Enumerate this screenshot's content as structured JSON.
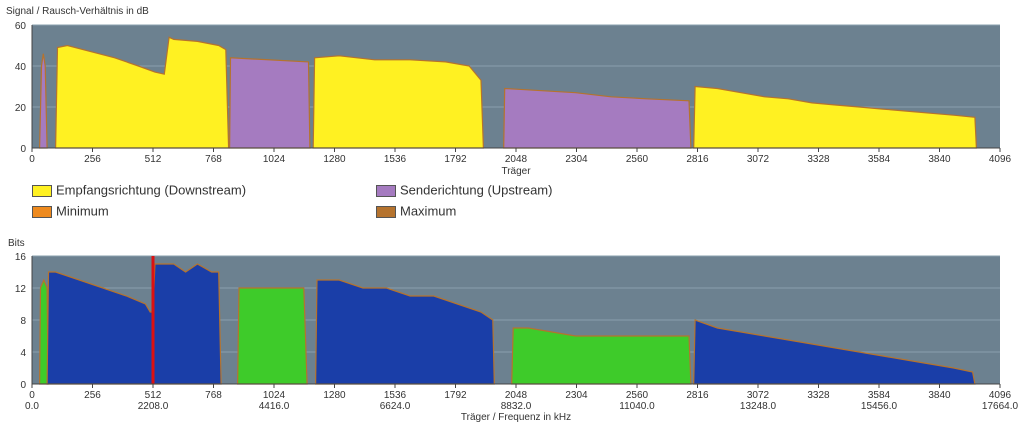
{
  "chart_data": [
    {
      "type": "area",
      "title": "Signal / Rausch-Verhältnis in dB",
      "xlabel": "Träger",
      "ylabel": "",
      "xlim": [
        0,
        4096
      ],
      "ylim": [
        0,
        60
      ],
      "xticks": [
        0,
        256,
        512,
        768,
        1024,
        1280,
        1536,
        1792,
        2048,
        2304,
        2560,
        2816,
        3072,
        3328,
        3584,
        3840,
        4096
      ],
      "yticks": [
        0,
        20,
        40,
        60
      ],
      "colors": {
        "downstream": "#fff122",
        "upstream": "#a57bc0",
        "minimum": "#ee8a1e",
        "maximum": "#b5732e",
        "plot_bg": "#6c8190"
      },
      "legend": [
        {
          "label": "Empfangsrichtung (Downstream)",
          "color": "#fff122"
        },
        {
          "label": "Senderichtung (Upstream)",
          "color": "#a57bc0"
        },
        {
          "label": "Minimum",
          "color": "#ee8a1e"
        },
        {
          "label": "Maximum",
          "color": "#b5732e"
        }
      ],
      "series": [
        {
          "name": "Senderichtung (Upstream)",
          "segments": [
            {
              "x": [
                32,
                40,
                48,
                56,
                64
              ],
              "y": [
                0,
                40,
                46,
                40,
                0
              ]
            },
            {
              "x": [
                836,
                840,
                1170,
                1176
              ],
              "y": [
                0,
                44,
                42,
                0
              ]
            },
            {
              "x": [
                1996,
                2000,
                2300,
                2450,
                2600,
                2780,
                2788
              ],
              "y": [
                0,
                29,
                27,
                25,
                24,
                23,
                0
              ]
            }
          ]
        },
        {
          "name": "Empfangsrichtung (Downstream)",
          "segments": [
            {
              "x": [
                100,
                108,
                150,
                250,
                350,
                450,
                520,
                560,
                580,
                600,
                700,
                790,
                820,
                832
              ],
              "y": [
                0,
                49,
                50,
                47,
                44,
                40,
                37,
                36,
                54,
                53,
                52,
                50,
                48,
                0
              ]
            },
            {
              "x": [
                1190,
                1196,
                1300,
                1450,
                1600,
                1750,
                1850,
                1900,
                1910
              ],
              "y": [
                0,
                44,
                45,
                43,
                43,
                42,
                40,
                33,
                0
              ]
            },
            {
              "x": [
                2800,
                2806,
                2900,
                3000,
                3100,
                3200,
                3300,
                3400,
                3500,
                3600,
                3700,
                3800,
                3900,
                3990,
                3996
              ],
              "y": [
                0,
                30,
                29,
                27,
                25,
                24,
                22,
                21,
                20,
                19,
                18,
                17,
                16,
                15,
                0
              ]
            }
          ]
        }
      ]
    },
    {
      "type": "area",
      "title": "Bits",
      "xlabel": "Träger / Frequenz in kHz",
      "ylabel": "",
      "xlim": [
        0,
        4096
      ],
      "ylim": [
        0,
        16
      ],
      "xticks": [
        0,
        256,
        512,
        768,
        1024,
        1280,
        1536,
        1792,
        2048,
        2304,
        2560,
        2816,
        3072,
        3328,
        3584,
        3840,
        4096
      ],
      "xticks_khz": [
        "0.0",
        "2208.0",
        "4416.0",
        "6624.0",
        "8832.0",
        "11040.0",
        "13248.0",
        "15456.0",
        "17664.0"
      ],
      "yticks": [
        0,
        4,
        8,
        12,
        16
      ],
      "marker_x": 512,
      "colors": {
        "downstream": "#1a3ea8",
        "upstream": "#3ecb2a",
        "outline": "#b5732e",
        "marker": "#dd1111",
        "plot_bg": "#6c8190"
      },
      "series": [
        {
          "name": "upstream",
          "segments": [
            {
              "x": [
                32,
                36,
                50,
                64,
                68
              ],
              "y": [
                0,
                12,
                13,
                12,
                0
              ]
            },
            {
              "x": [
                870,
                876,
                1000,
                1150,
                1164
              ],
              "y": [
                0,
                12,
                12,
                12,
                0
              ]
            },
            {
              "x": [
                2030,
                2036,
                2100,
                2300,
                2500,
                2780,
                2788
              ],
              "y": [
                0,
                7,
                7,
                6,
                6,
                6,
                0
              ]
            }
          ]
        },
        {
          "name": "downstream",
          "segments": [
            {
              "x": [
                64,
                70,
                100,
                200,
                300,
                400,
                480,
                500,
                512,
                520,
                530,
                600,
                650,
                700,
                760,
                790,
                800
              ],
              "y": [
                0,
                14,
                14,
                13,
                12,
                11,
                10,
                9,
                9,
                15,
                15,
                15,
                14,
                15,
                14,
                14,
                0
              ]
            },
            {
              "x": [
                1200,
                1206,
                1300,
                1400,
                1500,
                1600,
                1700,
                1800,
                1900,
                1950,
                1956
              ],
              "y": [
                0,
                13,
                13,
                12,
                12,
                11,
                11,
                10,
                9,
                8,
                0
              ]
            },
            {
              "x": [
                2800,
                2806,
                2900,
                3000,
                3100,
                3200,
                3300,
                3400,
                3500,
                3600,
                3700,
                3800,
                3900,
                3980,
                3990
              ],
              "y": [
                0,
                8,
                7,
                6.5,
                6,
                5.5,
                5,
                4.5,
                4,
                3.5,
                3,
                2.5,
                2,
                1.5,
                0
              ]
            }
          ]
        }
      ]
    }
  ]
}
